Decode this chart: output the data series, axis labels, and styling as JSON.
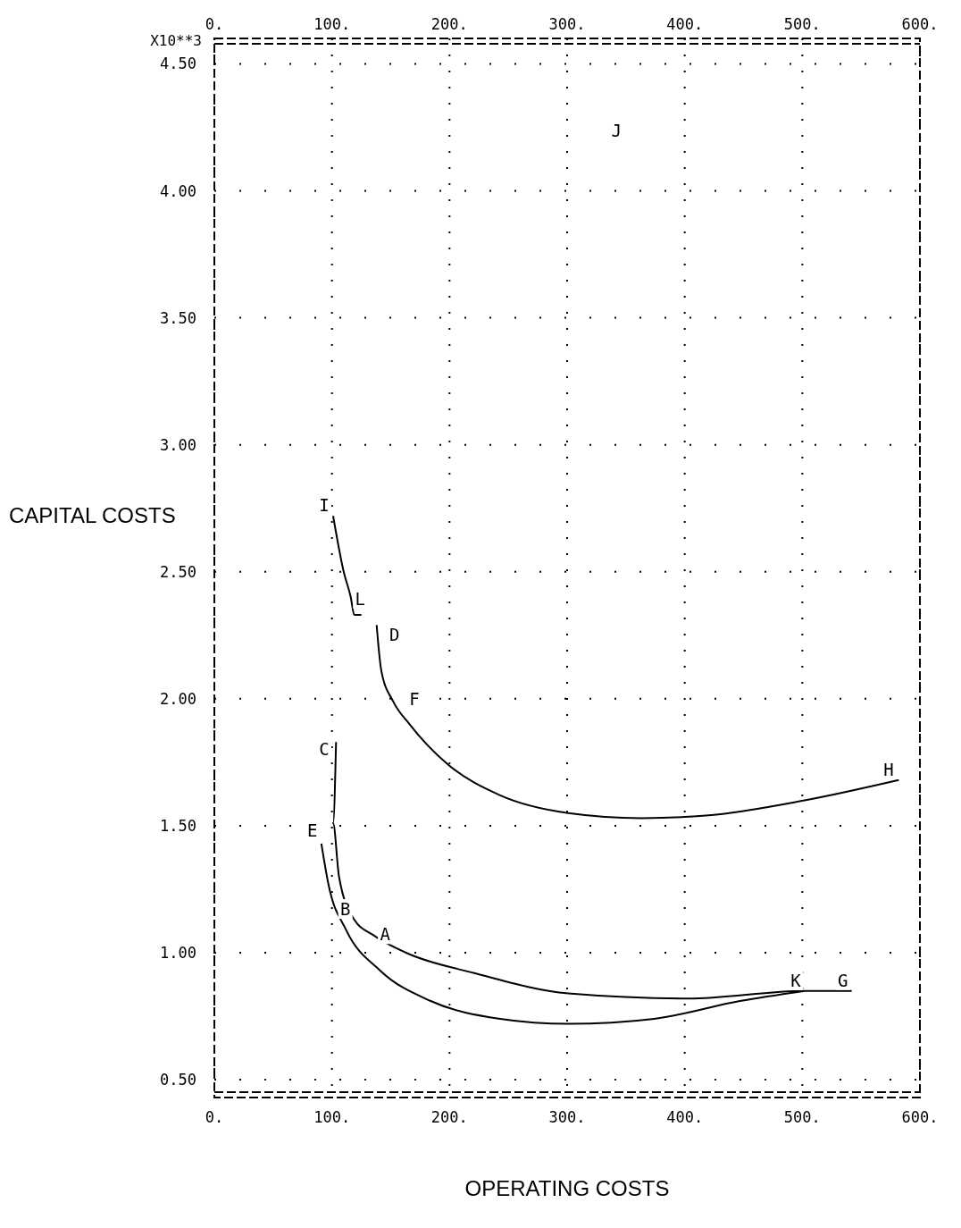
{
  "chart_data": {
    "type": "line",
    "xlabel": "OPERATING COSTS",
    "ylabel": "CAPITAL COSTS",
    "xlim": [
      0,
      600
    ],
    "ylim": [
      0.43,
      4.6
    ],
    "xticks": [
      {
        "value": 0,
        "label": "0."
      },
      {
        "value": 100,
        "label": "100."
      },
      {
        "value": 200,
        "label": "200."
      },
      {
        "value": 300,
        "label": "300."
      },
      {
        "value": 400,
        "label": "400."
      },
      {
        "value": 500,
        "label": "500."
      },
      {
        "value": 600,
        "label": "600."
      }
    ],
    "x2lim": [
      0,
      600
    ],
    "x2ticks": [
      {
        "value": 0,
        "label": "0."
      },
      {
        "value": 100,
        "label": "100."
      },
      {
        "value": 200,
        "label": "200."
      },
      {
        "value": 300,
        "label": "300."
      },
      {
        "value": 400,
        "label": "400."
      },
      {
        "value": 500,
        "label": "500."
      },
      {
        "value": 600,
        "label": "600."
      }
    ],
    "yticks": [
      {
        "value": 0.5,
        "label": "0.50"
      },
      {
        "value": 1,
        "label": "1.00"
      },
      {
        "value": 1.5,
        "label": "1.50"
      },
      {
        "value": 2,
        "label": "2.00"
      },
      {
        "value": 2.5,
        "label": "2.50"
      },
      {
        "value": 3,
        "label": "3.00"
      },
      {
        "value": 3.5,
        "label": "3.50"
      },
      {
        "value": 4,
        "label": "4.00"
      },
      {
        "value": 4.5,
        "label": "4.50"
      }
    ],
    "grid": true,
    "marker": "none",
    "line_style": "solid",
    "series": [
      {
        "color": "#000000",
        "x": [
          101,
          110,
          116,
          119,
          125
        ],
        "values": [
          2.72,
          2.5,
          2.4,
          2.33,
          2.33
        ]
      },
      {
        "color": "#000000",
        "x": [
          138,
          142,
          152,
          166,
          199,
          243,
          301,
          363,
          418,
          502,
          582
        ],
        "values": [
          2.29,
          2.11,
          1.99,
          1.9,
          1.74,
          1.62,
          1.55,
          1.53,
          1.54,
          1.6,
          1.68
        ]
      },
      {
        "color": "#000000",
        "x": [
          103.5,
          101,
          106,
          119,
          135,
          163,
          221,
          301,
          403,
          502,
          542
        ],
        "values": [
          1.83,
          1.51,
          1.3,
          1.13,
          1.07,
          1.0,
          0.92,
          0.84,
          0.82,
          0.85,
          0.85
        ]
      },
      {
        "color": "#000000",
        "x": [
          91,
          97,
          112,
          141,
          184,
          243,
          301,
          374,
          447,
          502
        ],
        "values": [
          1.43,
          1.27,
          1.09,
          0.93,
          0.81,
          0.74,
          0.72,
          0.74,
          0.81,
          0.85
        ]
      }
    ],
    "annotations": [
      "X10**3",
      {
        "text": "I",
        "x": 101,
        "y": 2.72
      },
      {
        "text": "L",
        "x": 124,
        "y": 2.33
      },
      {
        "text": "D",
        "x": 141,
        "y": 2.26
      },
      {
        "text": "F",
        "x": 158,
        "y": 1.95
      },
      {
        "text": "H",
        "x": 581,
        "y": 1.68
      },
      {
        "text": "C",
        "x": 101,
        "y": 1.76
      },
      {
        "text": "E",
        "x": 91,
        "y": 1.44
      },
      {
        "text": "B",
        "x": 119,
        "y": 1.13
      },
      {
        "text": "A",
        "x": 133,
        "y": 1.08
      },
      {
        "text": "K",
        "x": 502,
        "y": 0.85
      },
      {
        "text": "G",
        "x": 542,
        "y": 0.85
      },
      "J"
    ]
  }
}
